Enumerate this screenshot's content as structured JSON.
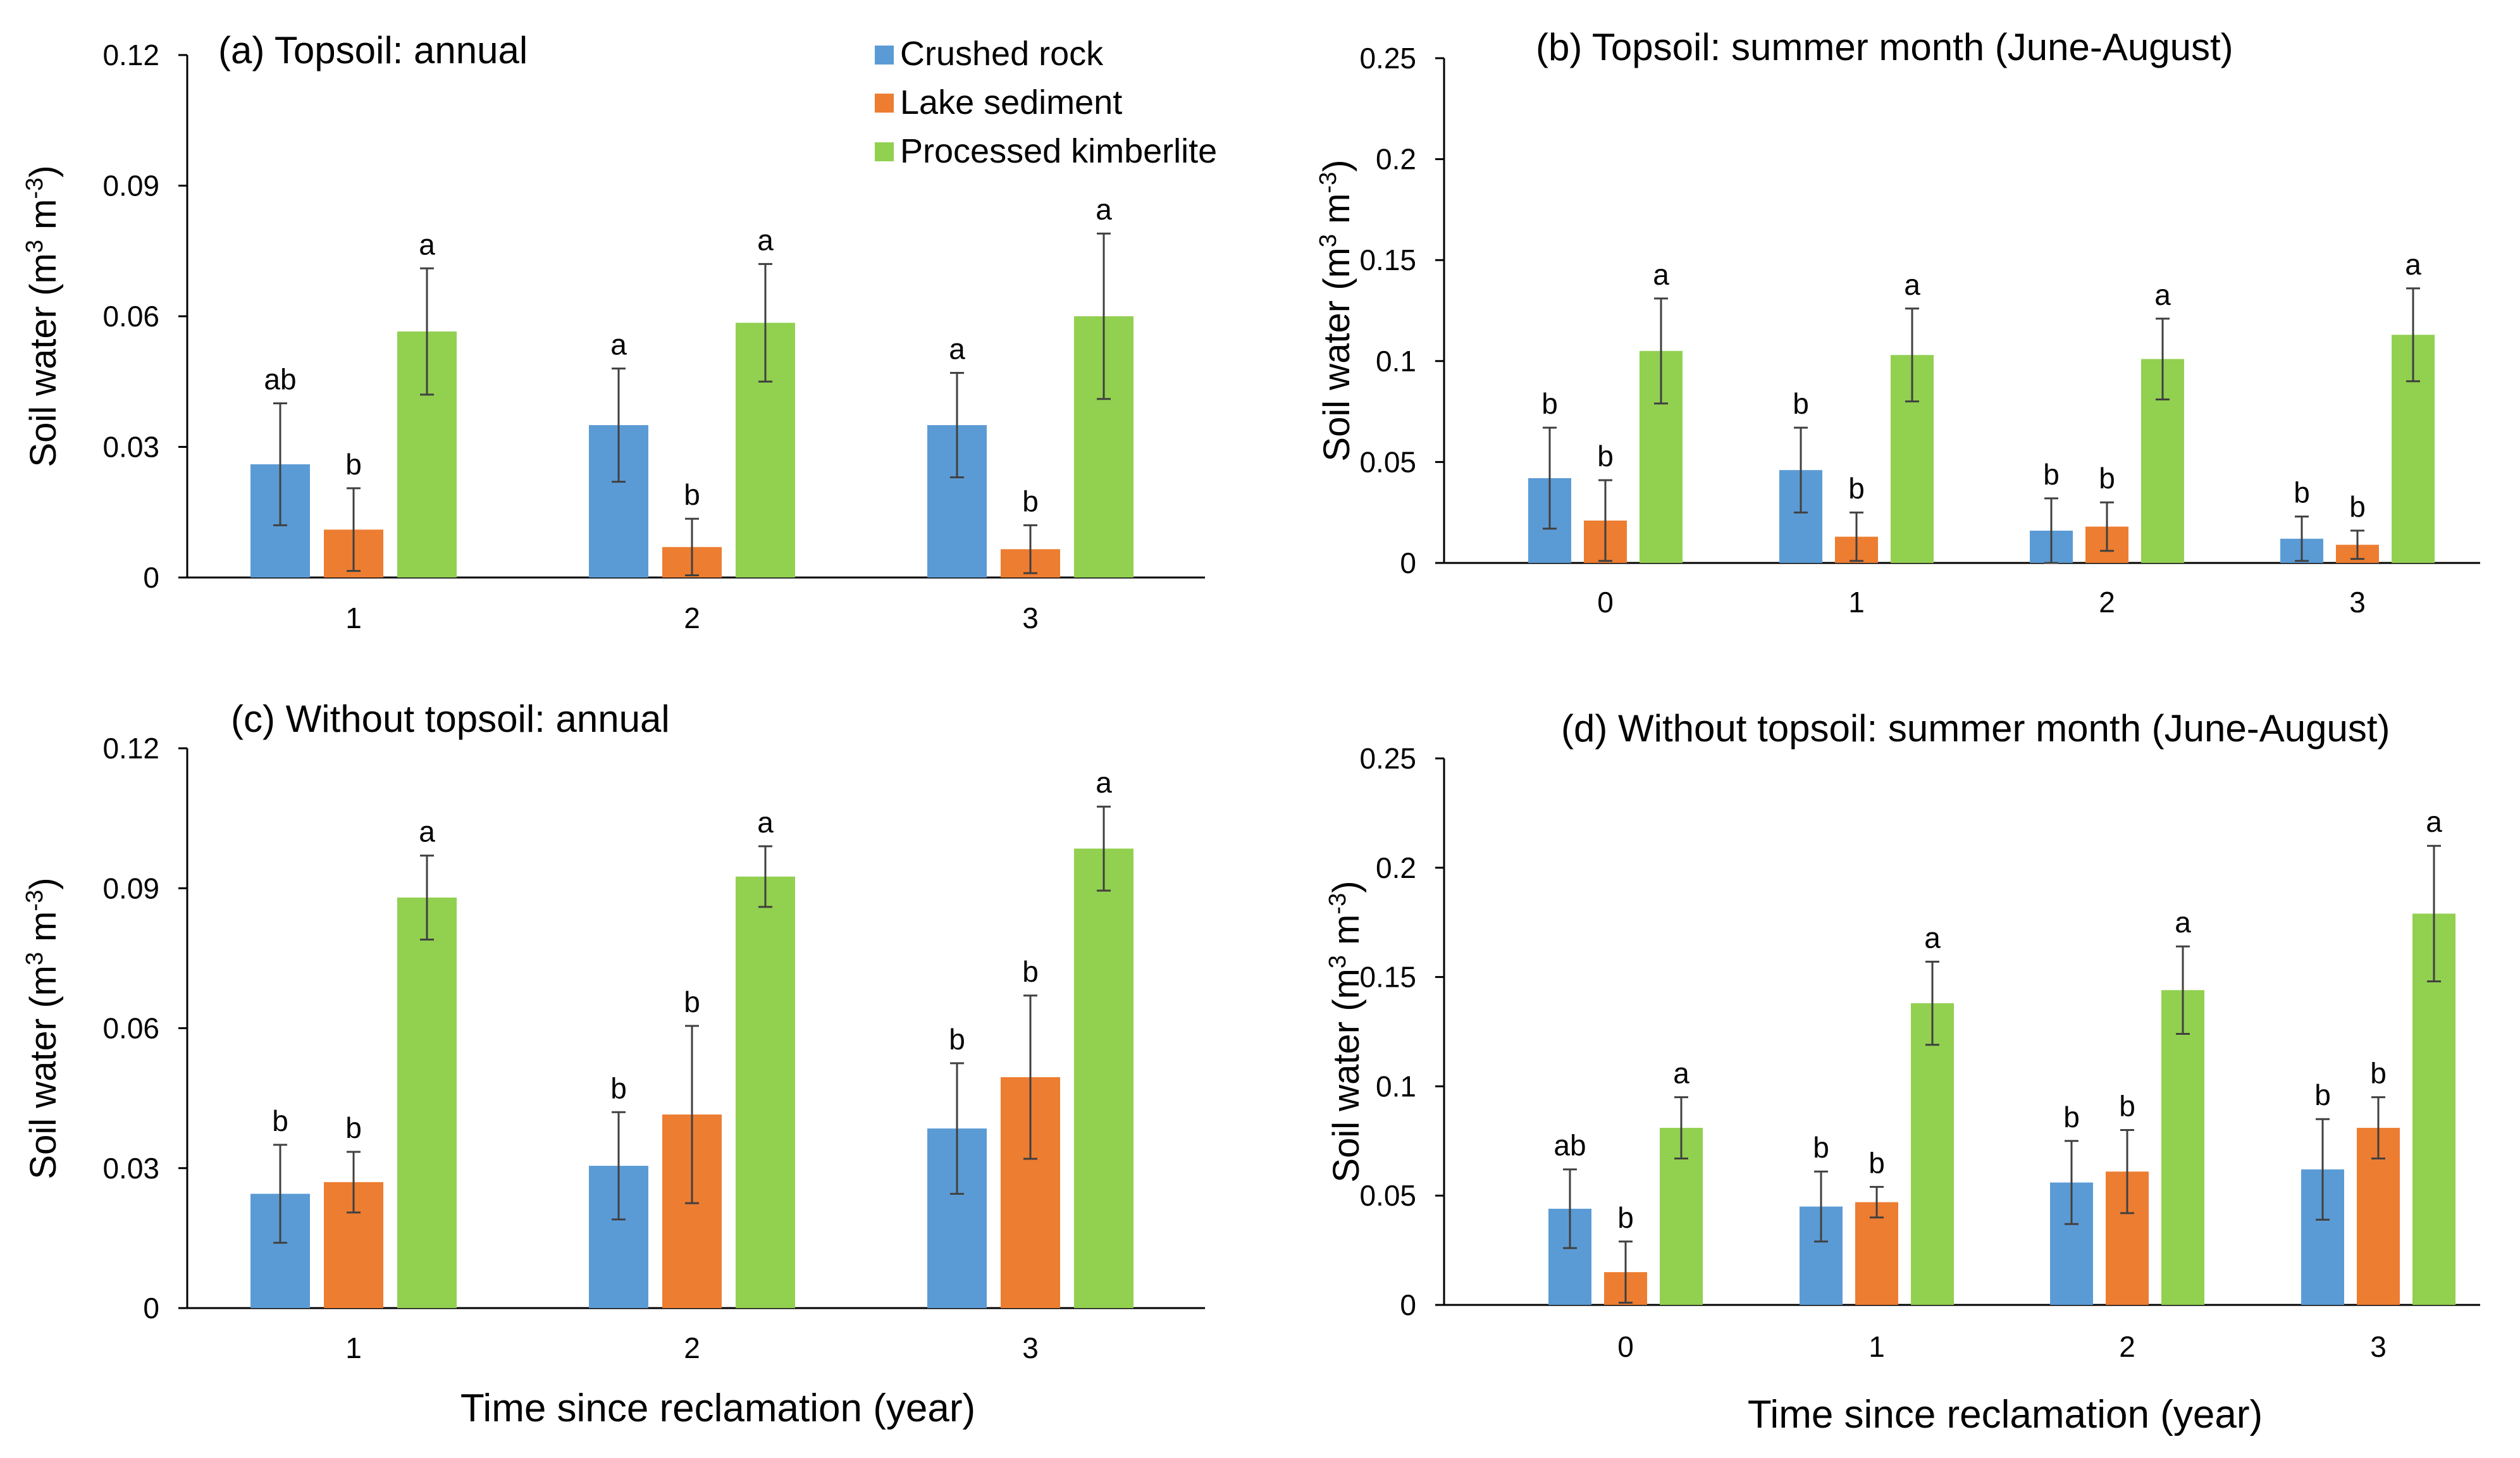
{
  "figure": {
    "xlabel": "Time since reclamation (year)",
    "legend": [
      {
        "name": "Crushed rock",
        "color": "#5B9BD5"
      },
      {
        "name": "Lake sediment",
        "color": "#ED7D31"
      },
      {
        "name": "Processed kimberlite",
        "color": "#92D050"
      }
    ]
  },
  "chart_data": [
    {
      "type": "bar",
      "panel": "a",
      "title": "(a) Topsoil: annual",
      "ylabel": "Soil water (m³ m⁻³)",
      "ylim": [
        0,
        0.12
      ],
      "yticks": [
        "0",
        "0.03",
        "0.06",
        "0.09",
        "0.12"
      ],
      "categories": [
        "1",
        "2",
        "3"
      ],
      "series": [
        {
          "name": "Crushed rock",
          "values": [
            0.026,
            0.035,
            0.035
          ],
          "err": [
            0.014,
            0.013,
            0.012
          ],
          "letters": [
            "ab",
            "a",
            "a"
          ]
        },
        {
          "name": "Lake sediment",
          "values": [
            0.011,
            0.007,
            0.0065
          ],
          "err": [
            0.0095,
            0.0065,
            0.0055
          ],
          "letters": [
            "b",
            "b",
            "b"
          ]
        },
        {
          "name": "Processed kimberlite",
          "values": [
            0.0565,
            0.0585,
            0.06
          ],
          "err": [
            0.0145,
            0.0135,
            0.019
          ],
          "letters": [
            "a",
            "a",
            "a"
          ]
        }
      ]
    },
    {
      "type": "bar",
      "panel": "b",
      "title": "(b) Topsoil: summer month (June-August)",
      "ylabel": "Soil water (m³ m⁻³)",
      "ylim": [
        0,
        0.25
      ],
      "yticks": [
        "0",
        "0.05",
        "0.1",
        "0.15",
        "0.2",
        "0.25"
      ],
      "categories": [
        "0",
        "1",
        "2",
        "3"
      ],
      "series": [
        {
          "name": "Crushed rock",
          "values": [
            0.042,
            0.046,
            0.016,
            0.012
          ],
          "err": [
            0.025,
            0.021,
            0.016,
            0.011
          ],
          "letters": [
            "b",
            "b",
            "b",
            "b"
          ]
        },
        {
          "name": "Lake sediment",
          "values": [
            0.021,
            0.013,
            0.018,
            0.009
          ],
          "err": [
            0.02,
            0.012,
            0.012,
            0.007
          ],
          "letters": [
            "b",
            "b",
            "b",
            "b"
          ]
        },
        {
          "name": "Processed kimberlite",
          "values": [
            0.105,
            0.103,
            0.101,
            0.113
          ],
          "err": [
            0.026,
            0.023,
            0.02,
            0.023
          ],
          "letters": [
            "a",
            "a",
            "a",
            "a"
          ]
        }
      ]
    },
    {
      "type": "bar",
      "panel": "c",
      "title": "(c) Without topsoil: annual",
      "ylabel": "Soil water (m³ m⁻³)",
      "ylim": [
        0,
        0.12
      ],
      "yticks": [
        "0",
        "0.03",
        "0.06",
        "0.09",
        "0.12"
      ],
      "categories": [
        "1",
        "2",
        "3"
      ],
      "series": [
        {
          "name": "Crushed rock",
          "values": [
            0.0245,
            0.0305,
            0.0385
          ],
          "err": [
            0.0105,
            0.0115,
            0.014
          ],
          "letters": [
            "b",
            "b",
            "b"
          ]
        },
        {
          "name": "Lake sediment",
          "values": [
            0.027,
            0.0415,
            0.0495
          ],
          "err": [
            0.0065,
            0.019,
            0.0175
          ],
          "letters": [
            "b",
            "b",
            "b"
          ]
        },
        {
          "name": "Processed kimberlite",
          "values": [
            0.088,
            0.0925,
            0.0985
          ],
          "err": [
            0.009,
            0.0065,
            0.009
          ],
          "letters": [
            "a",
            "a",
            "a"
          ]
        }
      ]
    },
    {
      "type": "bar",
      "panel": "d",
      "title": "(d) Without topsoil: summer month (June-August)",
      "ylabel": "Soil water (m³ m⁻³)",
      "ylim": [
        0,
        0.25
      ],
      "yticks": [
        "0",
        "0.05",
        "0.1",
        "0.15",
        "0.2",
        "0.25"
      ],
      "categories": [
        "0",
        "1",
        "2",
        "3"
      ],
      "series": [
        {
          "name": "Crushed rock",
          "values": [
            0.044,
            0.045,
            0.056,
            0.062
          ],
          "err": [
            0.018,
            0.016,
            0.019,
            0.023
          ],
          "letters": [
            "ab",
            "b",
            "b",
            "b"
          ]
        },
        {
          "name": "Lake sediment",
          "values": [
            0.015,
            0.047,
            0.061,
            0.081
          ],
          "err": [
            0.014,
            0.007,
            0.019,
            0.014
          ],
          "letters": [
            "b",
            "b",
            "b",
            "b"
          ]
        },
        {
          "name": "Processed kimberlite",
          "values": [
            0.081,
            0.138,
            0.144,
            0.179
          ],
          "err": [
            0.014,
            0.019,
            0.02,
            0.031
          ],
          "letters": [
            "a",
            "a",
            "a",
            "a"
          ]
        }
      ]
    }
  ]
}
